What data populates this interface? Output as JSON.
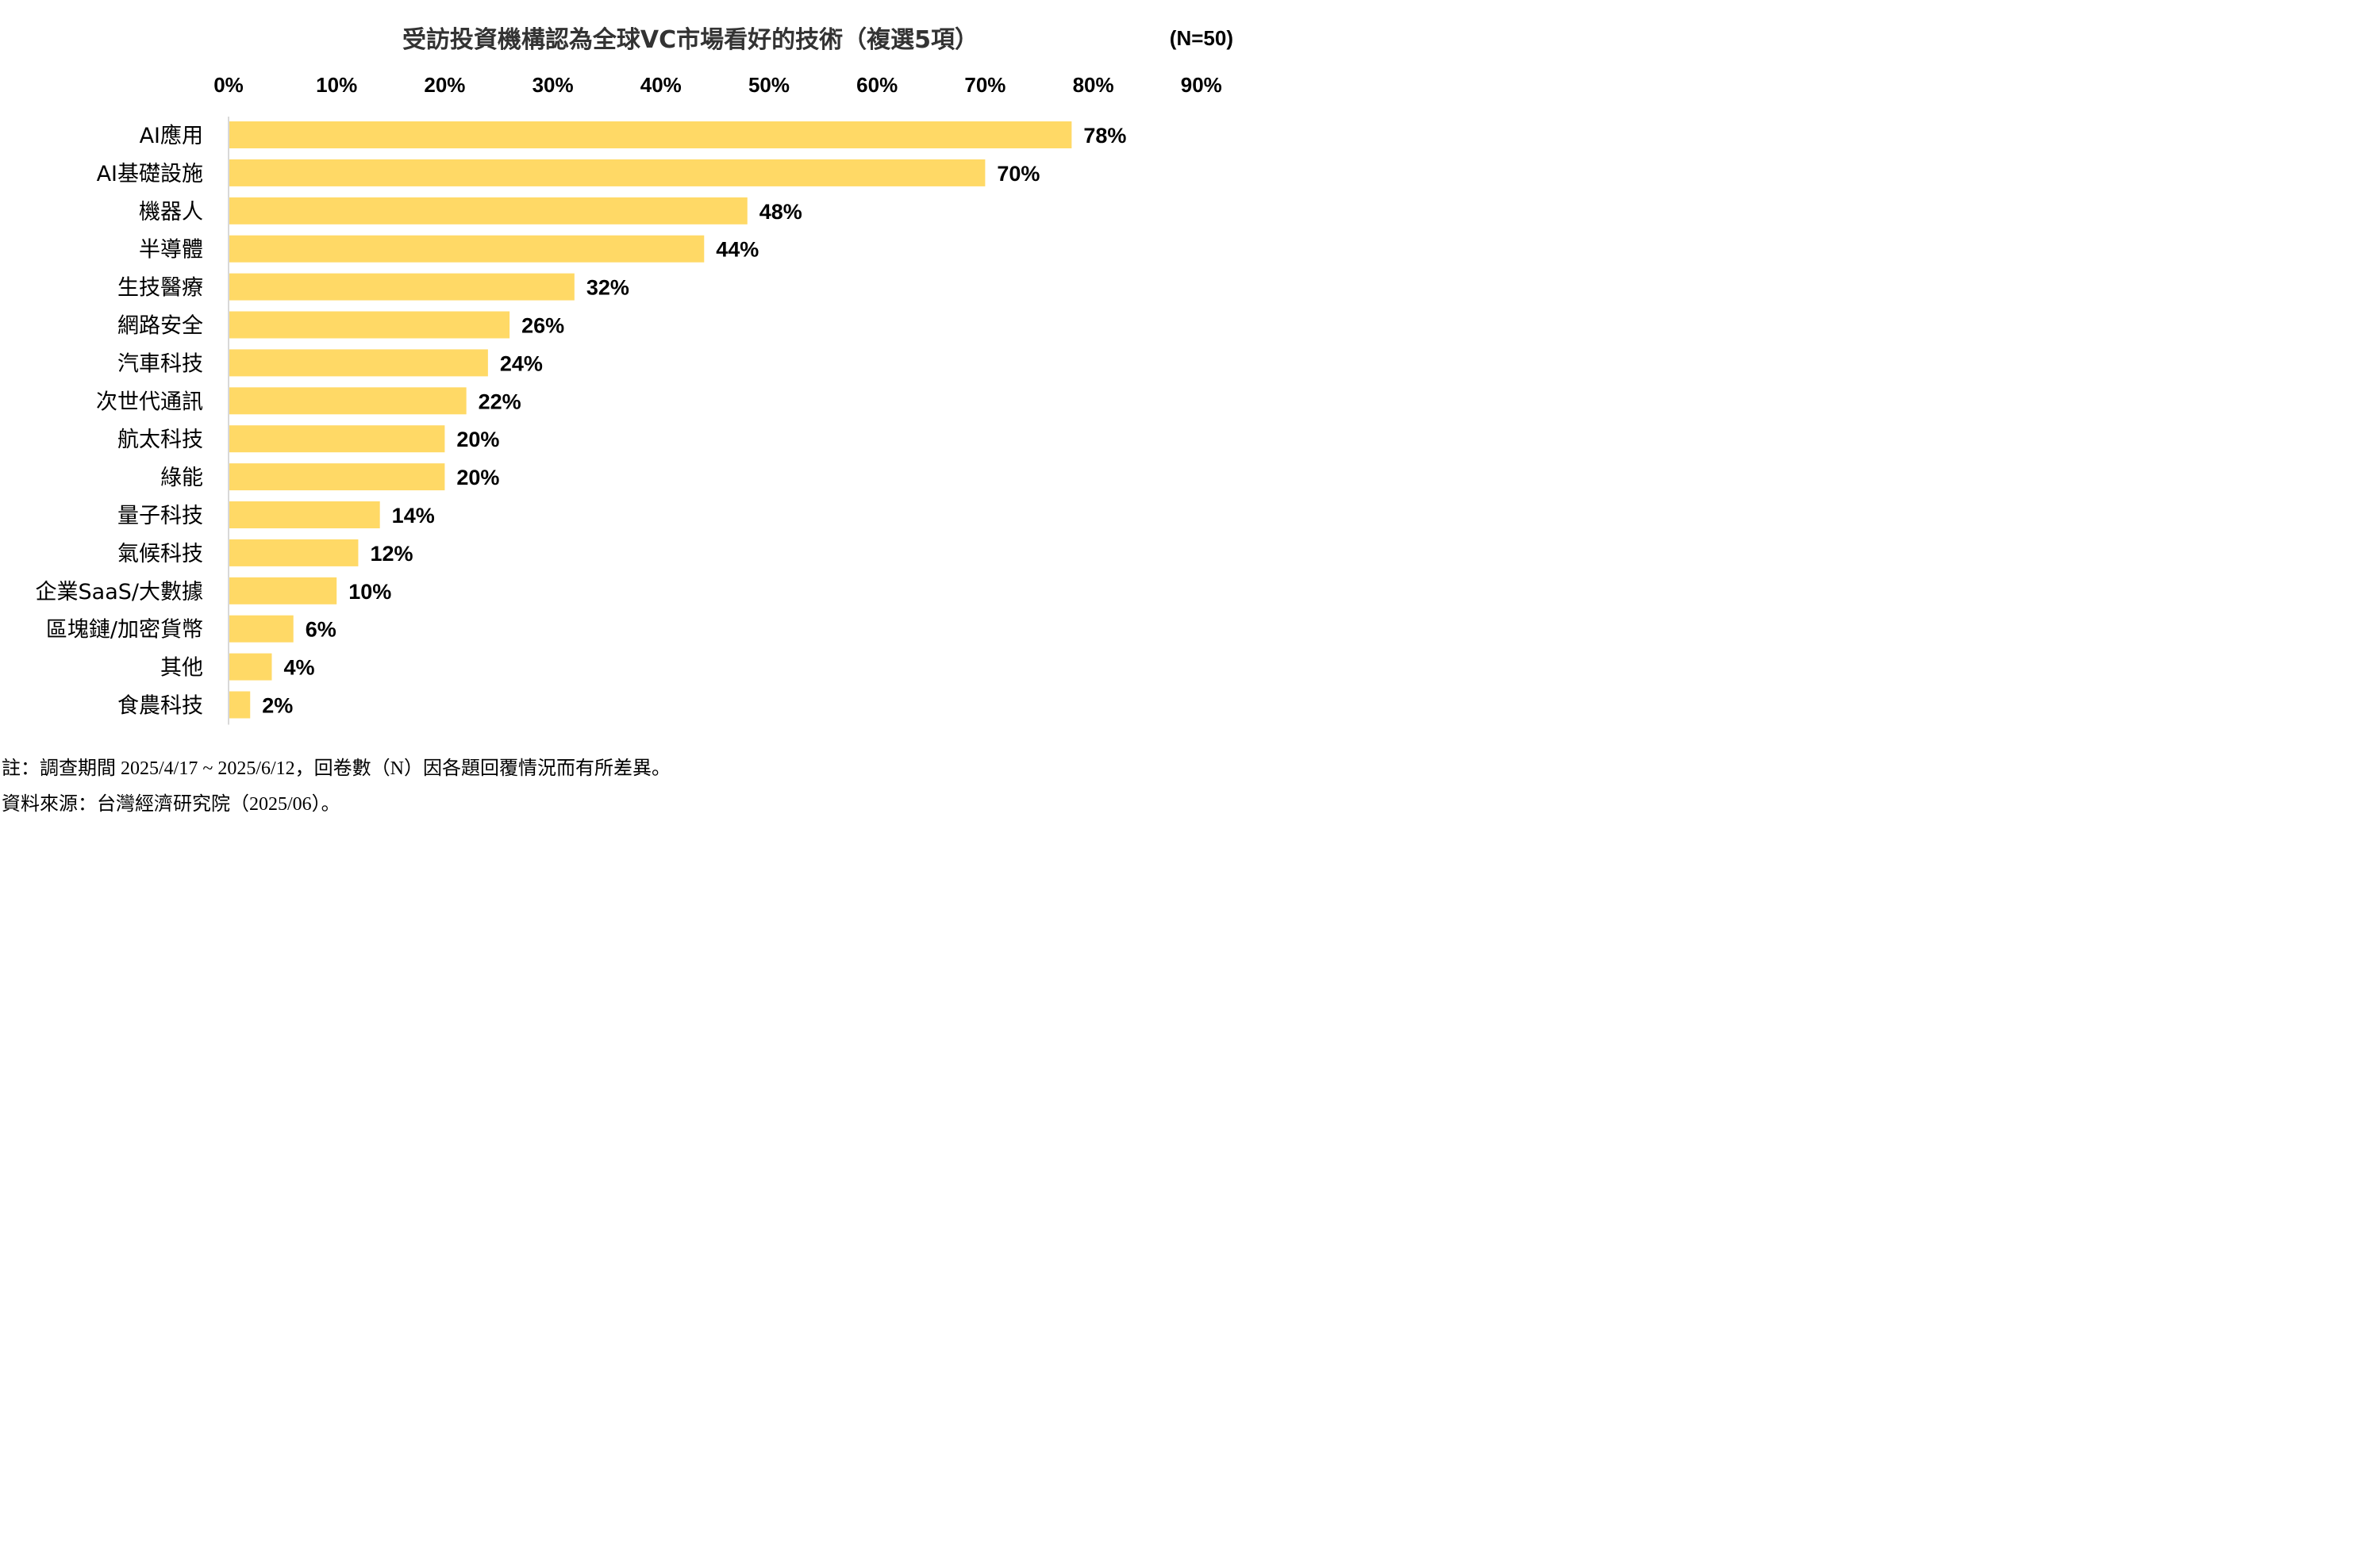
{
  "chart_data": {
    "type": "bar",
    "orientation": "horizontal",
    "title": "受訪投資機構認為全球VC市場看好的技術（複選5項）",
    "sample_note": "(N=50)",
    "categories": [
      "AI應用",
      "AI基礎設施",
      "機器人",
      "半導體",
      "生技醫療",
      "網路安全",
      "汽車科技",
      "次世代通訊",
      "航太科技",
      "綠能",
      "量子科技",
      "氣候科技",
      "企業SaaS/大數據",
      "區塊鏈/加密貨幣",
      "其他",
      "食農科技"
    ],
    "values": [
      78,
      70,
      48,
      44,
      32,
      26,
      24,
      22,
      20,
      20,
      14,
      12,
      10,
      6,
      4,
      2
    ],
    "value_labels": [
      "78%",
      "70%",
      "48%",
      "44%",
      "32%",
      "26%",
      "24%",
      "22%",
      "20%",
      "20%",
      "14%",
      "12%",
      "10%",
      "6%",
      "4%",
      "2%"
    ],
    "xlim": [
      0,
      90
    ],
    "x_ticks": [
      "0%",
      "10%",
      "20%",
      "30%",
      "40%",
      "50%",
      "60%",
      "70%",
      "80%",
      "90%"
    ],
    "x_axis_position": "top",
    "grid": false,
    "legend": "none",
    "bar_color": "#FFD966",
    "axis_line_color": "#D9D9D9"
  },
  "footnotes": {
    "note": "註：調查期間 2025/4/17 ~ 2025/6/12，回卷數（N）因各題回覆情況而有所差異。",
    "source": "資料來源：台灣經濟研究院（2025/06）。"
  }
}
